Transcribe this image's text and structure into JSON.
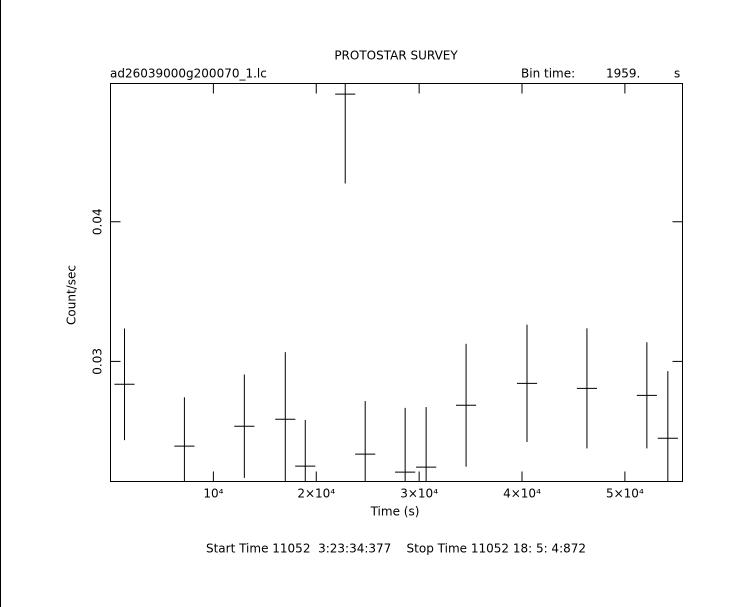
{
  "chart_data": {
    "type": "errorbar",
    "title": "PROTOSTAR SURVEY",
    "subtitle": "ad26039000g200070_1.lc",
    "bin_time_label": "Bin time:",
    "bin_time": "1959.",
    "bin_time_unit": "s",
    "x_label": "Time (s)",
    "y_label": "Count/sec",
    "footer": "Start Time 11052  3:23:34:377    Stop Time 11052 18: 5: 4:872",
    "x": [
      1360,
      7184,
      13010,
      16990,
      18932,
      22816,
      24757,
      28641,
      30680,
      34563,
      40485,
      46311,
      52136,
      54175
    ],
    "values": [
      0.02836,
      0.02393,
      0.02536,
      0.02586,
      0.0225,
      0.04914,
      0.02336,
      0.02207,
      0.02243,
      0.02686,
      0.02843,
      0.02807,
      0.02757,
      0.0245
    ],
    "yerr": [
      0.004,
      0.0035,
      0.0037,
      0.0048,
      0.0033,
      0.0064,
      0.0038,
      0.0046,
      0.0043,
      0.0044,
      0.0042,
      0.0043,
      0.0038,
      0.0048
    ],
    "xerr": 979.5,
    "color": "#000000",
    "xlim": [
      0,
      55600
    ],
    "ylim": [
      0.0214,
      0.0499
    ],
    "xticks": [
      {
        "value": 10000,
        "label": "10⁴"
      },
      {
        "value": 20000,
        "label": "2×10⁴"
      },
      {
        "value": 30000,
        "label": "3×10⁴"
      },
      {
        "value": 40000,
        "label": "4×10⁴"
      },
      {
        "value": 50000,
        "label": "5×10⁴"
      }
    ],
    "yticks": [
      0.03,
      0.04
    ]
  }
}
